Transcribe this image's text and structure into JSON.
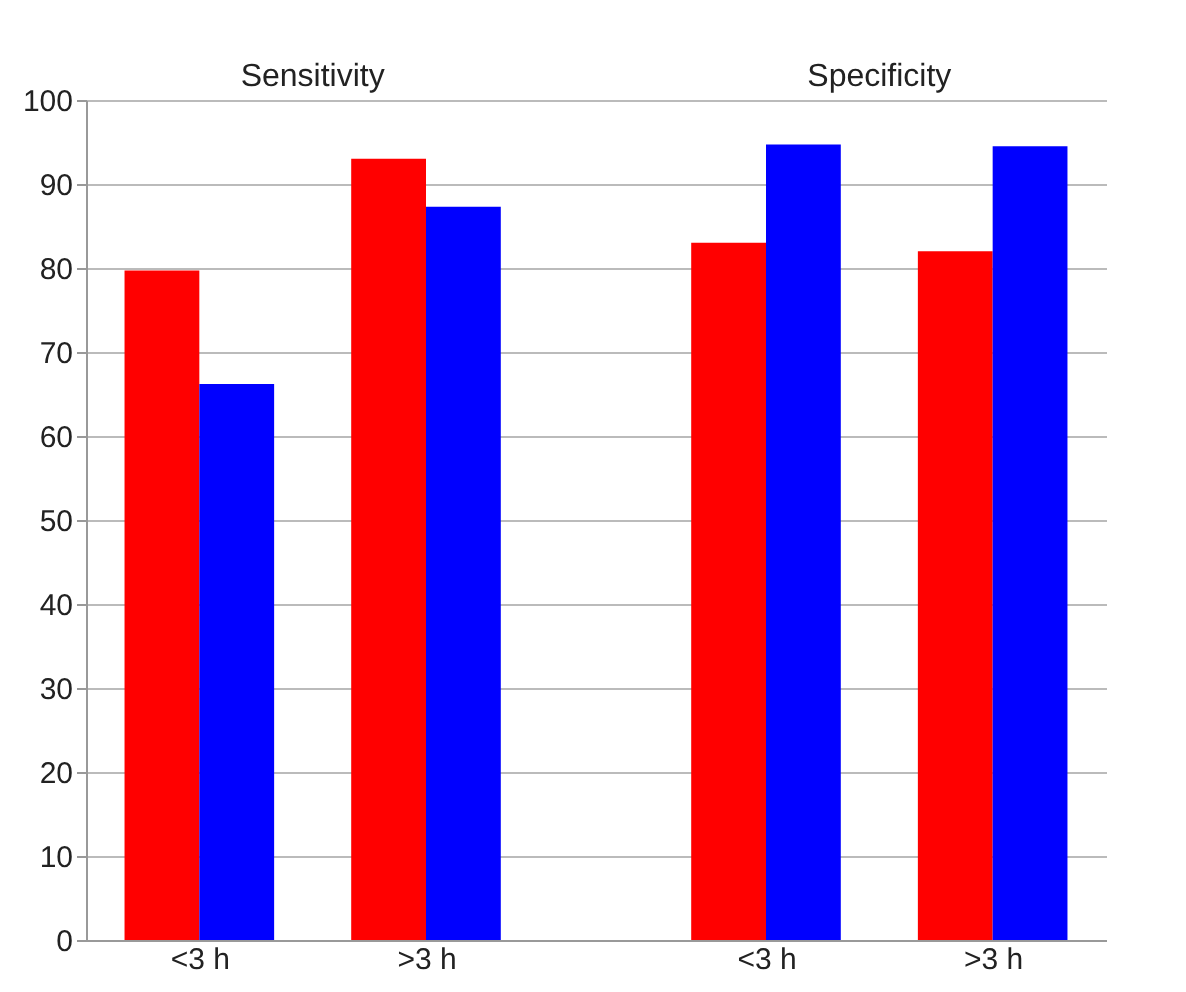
{
  "chart_data": {
    "type": "bar",
    "categories": [
      "<3 h",
      ">3 h",
      "<3 h",
      ">3 h"
    ],
    "series": [
      {
        "color": "#ff0000",
        "values": [
          79.7,
          93,
          83,
          82
        ]
      },
      {
        "color": "#0000ff",
        "values": [
          66.2,
          87.3,
          94.7,
          94.5
        ]
      }
    ],
    "annotations": [
      "Sensitivity",
      "Specificity"
    ],
    "ylim": [
      0,
      100
    ],
    "yticks": [
      0,
      10,
      20,
      30,
      40,
      50,
      60,
      70,
      80,
      90,
      100
    ],
    "grid": "y"
  }
}
